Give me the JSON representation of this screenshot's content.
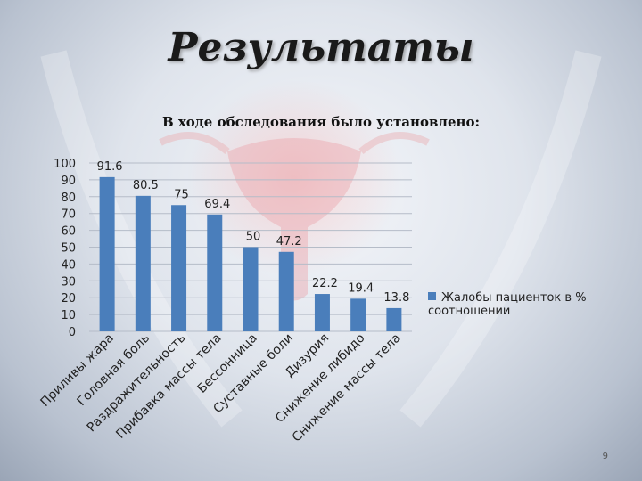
{
  "slide": {
    "title": "Результаты",
    "subtitle": "В ходе обследования было установлено:",
    "page_number": "9"
  },
  "colors": {
    "bar": "#4a7ebb",
    "text": "#222222"
  },
  "chart_data": {
    "type": "bar",
    "categories": [
      "Приливы жара",
      "Головная боль",
      "Раздражительность",
      "Прибавка массы тела",
      "Бессонница",
      "Суставные боли",
      "Дизурия",
      "Снижение либидо",
      "Снижение массы тела"
    ],
    "series": [
      {
        "name": "Жалобы пациенток в % соотношении",
        "values": [
          91.6,
          80.5,
          75,
          69.4,
          50,
          47.2,
          22.2,
          19.4,
          13.8
        ]
      }
    ],
    "data_labels": [
      "91.6",
      "80.5",
      "75",
      "69.4",
      "50",
      "47.2",
      "22.2",
      "19.4",
      "13.8"
    ],
    "ylim": [
      0,
      100
    ],
    "yticks": [
      0,
      10,
      20,
      30,
      40,
      50,
      60,
      70,
      80,
      90,
      100
    ],
    "grid": true,
    "legend": "right"
  }
}
